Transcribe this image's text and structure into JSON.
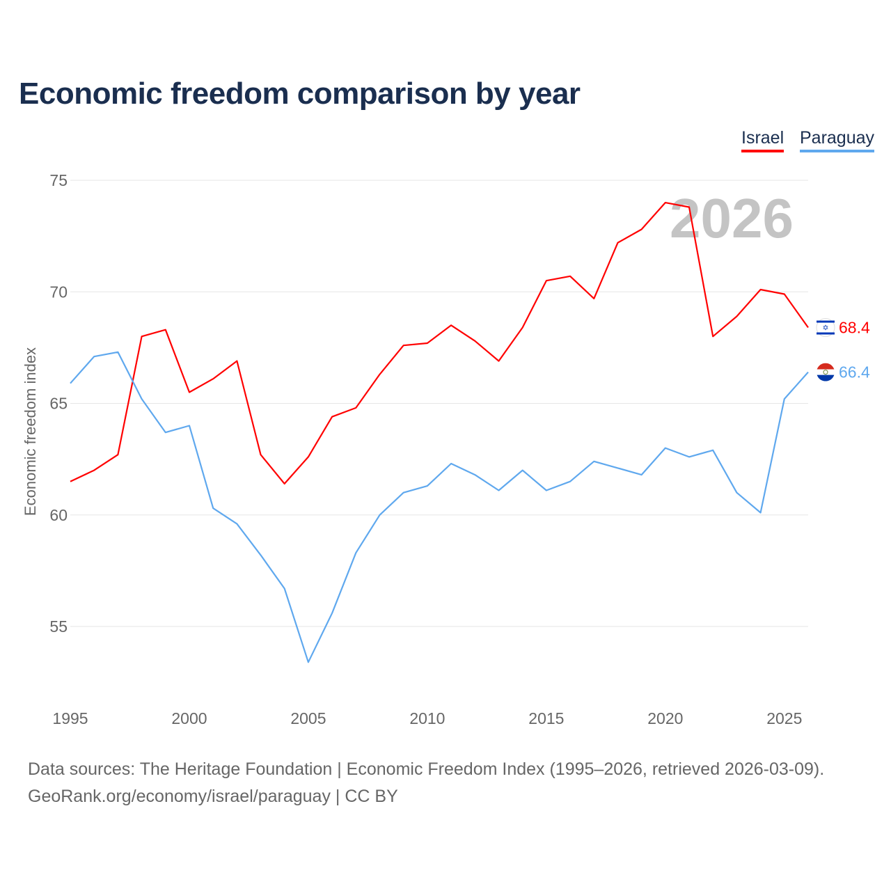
{
  "title": "Economic freedom comparison by year",
  "footer": {
    "line1": "Data sources: The Heritage Foundation | Economic Freedom Index (1995–2026, retrieved 2026-03-09).",
    "line2": "GeoRank.org/economy/israel/paraguay | CC BY"
  },
  "chart_data": {
    "type": "line",
    "title": "Economic freedom comparison by year",
    "xlabel": "",
    "ylabel": "Economic freedom index",
    "watermark_year": "2026",
    "xlim": [
      1995,
      2026
    ],
    "ylim": [
      52,
      75
    ],
    "xticks": [
      "1995",
      "2000",
      "2005",
      "2010",
      "2015",
      "2020",
      "2025"
    ],
    "yticks": [
      "55",
      "60",
      "65",
      "70",
      "75"
    ],
    "grid": true,
    "legend_position": "top-right",
    "x": [
      1995,
      1996,
      1997,
      1998,
      1999,
      2000,
      2001,
      2002,
      2003,
      2004,
      2005,
      2006,
      2007,
      2008,
      2009,
      2010,
      2011,
      2012,
      2013,
      2014,
      2015,
      2016,
      2017,
      2018,
      2019,
      2020,
      2021,
      2022,
      2023,
      2024,
      2025,
      2026
    ],
    "series": [
      {
        "name": "Israel",
        "color": "#ff0000",
        "end_label": "68.4",
        "flag": "israel-flag",
        "values": [
          61.5,
          62.0,
          62.7,
          68.0,
          68.3,
          65.5,
          66.1,
          66.9,
          62.7,
          61.4,
          62.6,
          64.4,
          64.8,
          66.3,
          67.6,
          67.7,
          68.5,
          67.8,
          66.9,
          68.4,
          70.5,
          70.7,
          69.7,
          72.2,
          72.8,
          74.0,
          73.8,
          68.0,
          68.9,
          70.1,
          69.9,
          68.4
        ]
      },
      {
        "name": "Paraguay",
        "color": "#5fa8ee",
        "end_label": "66.4",
        "flag": "paraguay-flag",
        "values": [
          65.9,
          67.1,
          67.3,
          65.2,
          63.7,
          64.0,
          60.3,
          59.6,
          58.2,
          56.7,
          53.4,
          55.6,
          58.3,
          60.0,
          61.0,
          61.3,
          62.3,
          61.8,
          61.1,
          62.0,
          61.1,
          61.5,
          62.4,
          62.1,
          61.8,
          63.0,
          62.6,
          62.9,
          61.0,
          60.1,
          65.2,
          66.4
        ]
      }
    ]
  }
}
